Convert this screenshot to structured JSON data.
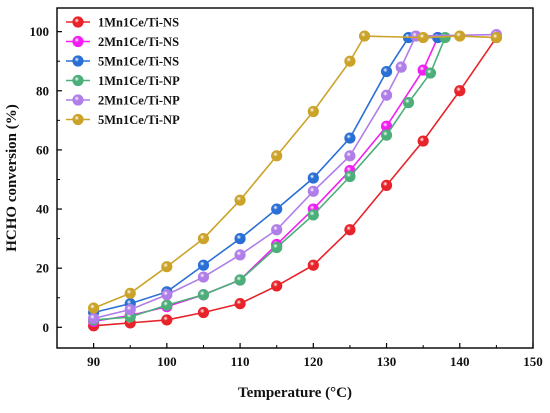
{
  "chart_data": {
    "type": "line",
    "xlabel": "Temperature (°C)",
    "ylabel": "HCHO conversion (%)",
    "xlim": [
      85,
      150
    ],
    "ylim": [
      -7,
      108
    ],
    "xticks": [
      90,
      100,
      110,
      120,
      130,
      140,
      150
    ],
    "yticks": [
      0,
      20,
      40,
      60,
      80,
      100
    ],
    "legend_position": "top-left",
    "grid": false,
    "series": [
      {
        "name": "1Mn1Ce/Ti-NS",
        "color": "#e8232a",
        "x": [
          90,
          95,
          100,
          105,
          110,
          115,
          120,
          125,
          130,
          135,
          140,
          145
        ],
        "y": [
          0.5,
          1.5,
          2.5,
          5,
          8,
          14,
          21,
          33,
          48,
          63,
          80,
          98
        ]
      },
      {
        "name": "2Mn1Ce/Ti-NS",
        "color": "#f21ff2",
        "x": [
          90,
          95,
          100,
          105,
          110,
          115,
          120,
          125,
          130,
          135,
          137
        ],
        "y": [
          2,
          4,
          7,
          11,
          16,
          28,
          40,
          53,
          68,
          87,
          98
        ]
      },
      {
        "name": "5Mn1Ce/Ti-NS",
        "color": "#2a6fd6",
        "x": [
          90,
          95,
          100,
          105,
          110,
          115,
          120,
          125,
          130,
          133,
          137
        ],
        "y": [
          5,
          8,
          12,
          21,
          30,
          40,
          50.5,
          64,
          86.5,
          98,
          98
        ]
      },
      {
        "name": "1Mn1Ce/Ti-NP",
        "color": "#4caf7a",
        "x": [
          90,
          95,
          100,
          105,
          110,
          115,
          120,
          125,
          130,
          133,
          136,
          138
        ],
        "y": [
          2.5,
          3.5,
          7.5,
          11,
          16,
          27,
          38,
          51,
          65,
          76,
          86,
          98
        ]
      },
      {
        "name": "2Mn1Ce/Ti-NP",
        "color": "#b07ee8",
        "x": [
          90,
          95,
          100,
          105,
          110,
          115,
          120,
          125,
          130,
          132,
          134,
          145
        ],
        "y": [
          3,
          6,
          11,
          17,
          24.5,
          33,
          46,
          58,
          78.5,
          88,
          98.5,
          99
        ]
      },
      {
        "name": "5Mn1Ce/Ti-NP",
        "color": "#cca32a",
        "x": [
          90,
          95,
          100,
          105,
          110,
          115,
          120,
          125,
          127,
          135,
          140,
          145
        ],
        "y": [
          6.5,
          11.5,
          20.5,
          30,
          43,
          58,
          73,
          90,
          98.5,
          98,
          98.5,
          98
        ]
      }
    ]
  }
}
